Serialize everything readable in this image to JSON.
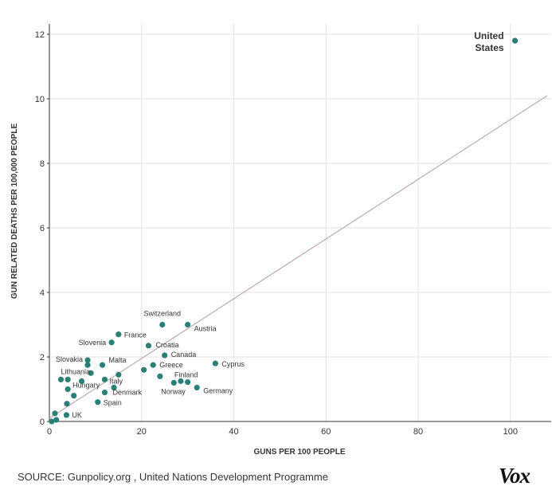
{
  "chart_data": {
    "type": "scatter",
    "title": "",
    "xlabel": "GUNS PER 100 PEOPLE",
    "ylabel": "GUN RELATED DEATHS PER 100,000 PEOPLE",
    "xlim": [
      0,
      108
    ],
    "ylim": [
      0,
      12.3
    ],
    "xticks": [
      0,
      20,
      40,
      60,
      80,
      100
    ],
    "yticks": [
      0,
      2,
      4,
      6,
      8,
      10,
      12
    ],
    "grid": true,
    "legend": "none",
    "point_color": "#2a8077",
    "trend_color": "#b89aa6",
    "trendline": {
      "x": [
        0,
        108
      ],
      "y": [
        0.1,
        10.1
      ]
    },
    "labeled_points": [
      {
        "name": "United States",
        "line1": "United",
        "line2": "States",
        "x": 101,
        "y": 11.8,
        "emphasis": true
      },
      {
        "name": "Switzerland",
        "x": 24.5,
        "y": 3.0
      },
      {
        "name": "Austria",
        "x": 30,
        "y": 3.0
      },
      {
        "name": "France",
        "x": 15,
        "y": 2.7
      },
      {
        "name": "Slovenia",
        "x": 13.5,
        "y": 2.45
      },
      {
        "name": "Croatia",
        "x": 21.5,
        "y": 2.35
      },
      {
        "name": "Canada",
        "x": 25,
        "y": 2.05
      },
      {
        "name": "Cyprus",
        "x": 36,
        "y": 1.8
      },
      {
        "name": "Slovakia",
        "x": 8.3,
        "y": 1.9
      },
      {
        "name": "Malta",
        "x": 11.5,
        "y": 1.75
      },
      {
        "name": "Greece",
        "x": 22.5,
        "y": 1.75
      },
      {
        "name": "Lithuania",
        "x": 2.5,
        "y": 1.3
      },
      {
        "name": "Finland",
        "x": 24,
        "y": 1.4
      },
      {
        "name": "Italy",
        "x": 12,
        "y": 1.3
      },
      {
        "name": "Norway",
        "x": 27,
        "y": 1.2
      },
      {
        "name": "Germany",
        "x": 32,
        "y": 1.05
      },
      {
        "name": "Hungary",
        "x": 4,
        "y": 1.0
      },
      {
        "name": "Denmark",
        "x": 12,
        "y": 0.9
      },
      {
        "name": "Spain",
        "x": 10.5,
        "y": 0.6
      },
      {
        "name": "UK",
        "x": 3.7,
        "y": 0.2
      }
    ],
    "other_points": [
      {
        "x": 4,
        "y": 1.3
      },
      {
        "x": 7,
        "y": 1.25
      },
      {
        "x": 8.3,
        "y": 1.75
      },
      {
        "x": 9,
        "y": 1.5
      },
      {
        "x": 15,
        "y": 1.45
      },
      {
        "x": 14,
        "y": 1.05
      },
      {
        "x": 20.5,
        "y": 1.6
      },
      {
        "x": 28.5,
        "y": 1.25
      },
      {
        "x": 30,
        "y": 1.22
      },
      {
        "x": 5.3,
        "y": 0.8
      },
      {
        "x": 3.8,
        "y": 0.55
      },
      {
        "x": 1.2,
        "y": 0.25
      },
      {
        "x": 1.5,
        "y": 0.05
      },
      {
        "x": 0.5,
        "y": 0.0
      }
    ]
  },
  "footer": {
    "source": "SOURCE: Gunpolicy.org , United Nations Development Programme",
    "logo": "Vox"
  }
}
